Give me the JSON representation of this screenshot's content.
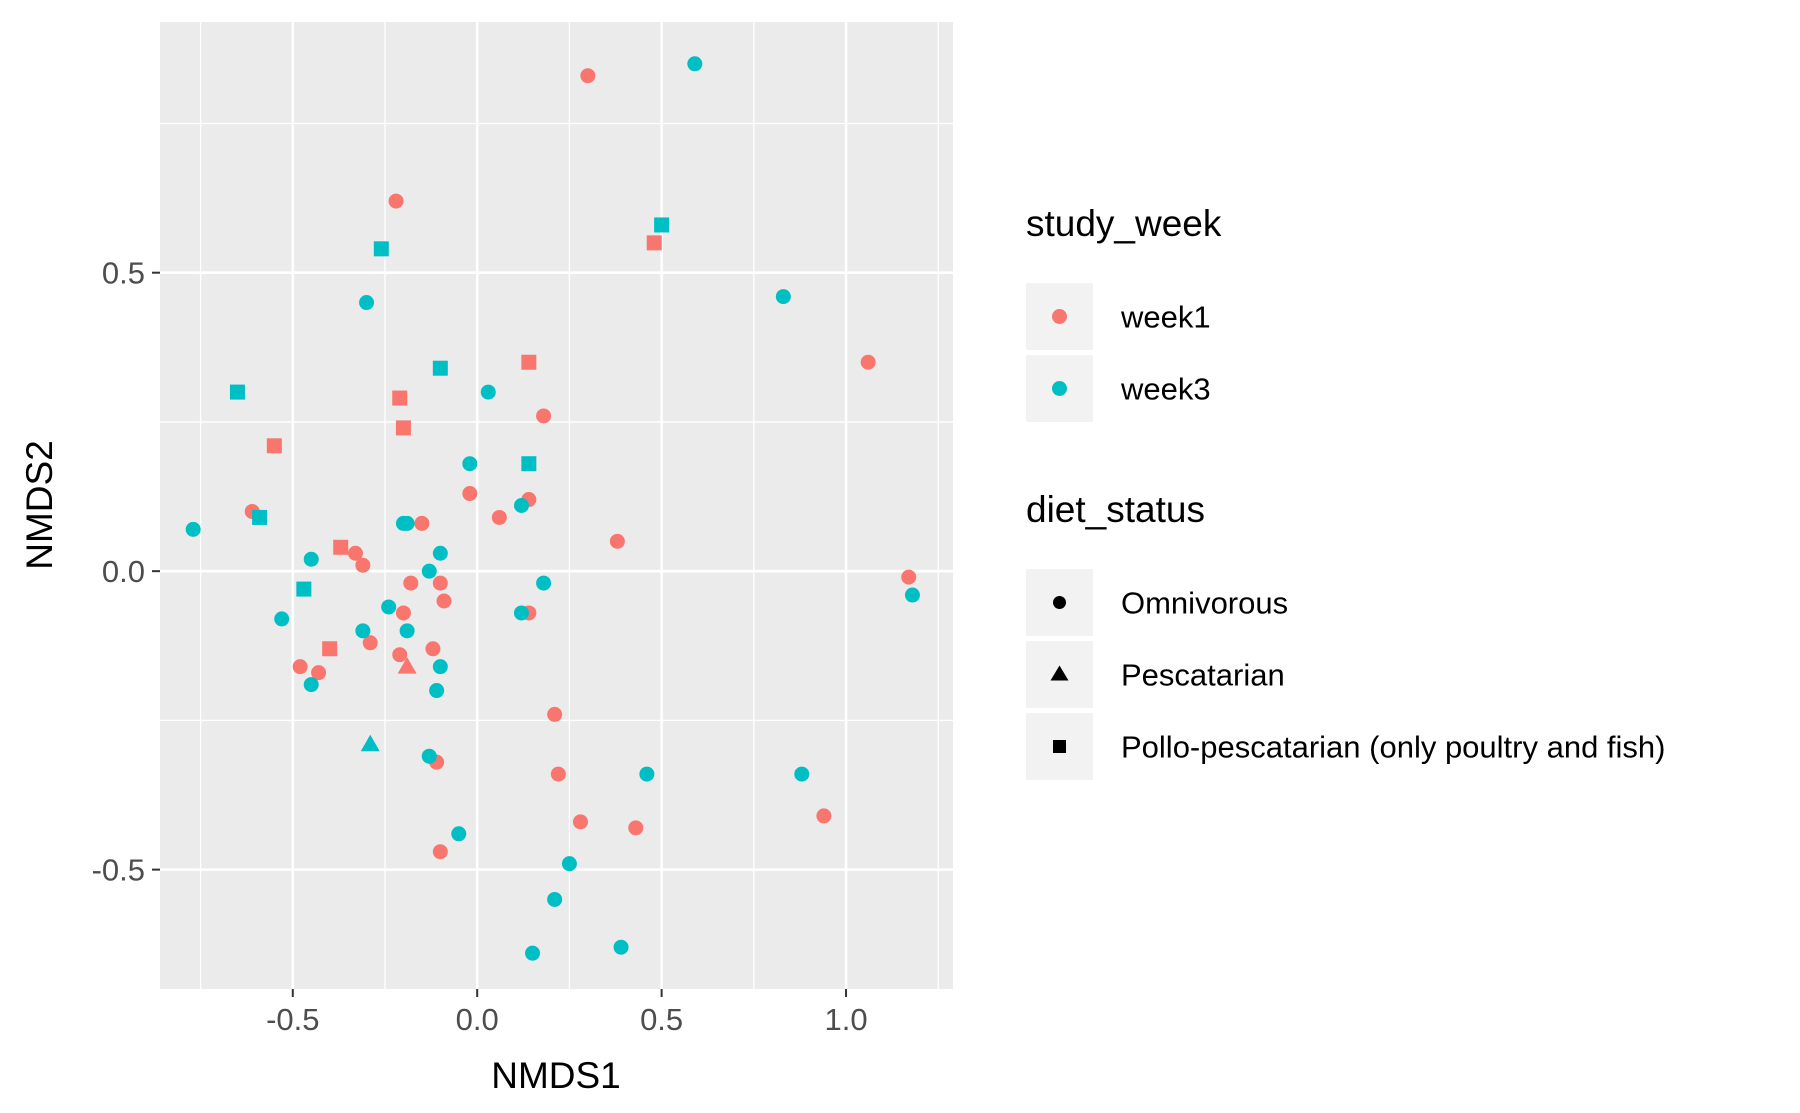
{
  "chart_data": {
    "type": "scatter",
    "xlabel": "NMDS1",
    "ylabel": "NMDS2",
    "xlim": [
      -0.86,
      1.29
    ],
    "ylim": [
      -0.7,
      0.92
    ],
    "x_ticks": [
      -0.5,
      0.0,
      0.5,
      1.0
    ],
    "y_ticks": [
      -0.5,
      0.0,
      0.5
    ],
    "x_tick_labels": [
      "-0.5",
      "0.0",
      "0.5",
      "1.0"
    ],
    "y_tick_labels": [
      "-0.5",
      "0.0",
      "0.5"
    ],
    "grid": true,
    "legend_position": "right",
    "colors": {
      "week1": "#F8766D",
      "week3": "#00BFC4",
      "panel": "#EBEBEB",
      "grid": "#FFFFFF",
      "legend_key_bg": "#F2F2F2"
    },
    "legends": [
      {
        "title": "study_week",
        "kind": "color",
        "items": [
          {
            "label": "week1",
            "key": "week1"
          },
          {
            "label": "week3",
            "key": "week3"
          }
        ]
      },
      {
        "title": "diet_status",
        "kind": "shape",
        "items": [
          {
            "label": "Omnivorous",
            "shape": "circle"
          },
          {
            "label": "Pescatarian",
            "shape": "triangle"
          },
          {
            "label": "Pollo-pescatarian (only poultry and fish)",
            "shape": "square"
          }
        ]
      }
    ],
    "series": [
      {
        "name": "week1",
        "color": "#F8766D",
        "points": [
          {
            "x": 0.3,
            "y": 0.83,
            "shape": "circle"
          },
          {
            "x": -0.22,
            "y": 0.62,
            "shape": "circle"
          },
          {
            "x": 0.48,
            "y": 0.55,
            "shape": "square"
          },
          {
            "x": 1.06,
            "y": 0.35,
            "shape": "circle"
          },
          {
            "x": 0.14,
            "y": 0.35,
            "shape": "square"
          },
          {
            "x": -0.21,
            "y": 0.29,
            "shape": "square"
          },
          {
            "x": 0.18,
            "y": 0.26,
            "shape": "circle"
          },
          {
            "x": -0.2,
            "y": 0.24,
            "shape": "square"
          },
          {
            "x": -0.55,
            "y": 0.21,
            "shape": "square"
          },
          {
            "x": -0.02,
            "y": 0.13,
            "shape": "circle"
          },
          {
            "x": 0.14,
            "y": 0.12,
            "shape": "circle"
          },
          {
            "x": -0.61,
            "y": 0.1,
            "shape": "circle"
          },
          {
            "x": 0.06,
            "y": 0.09,
            "shape": "circle"
          },
          {
            "x": -0.15,
            "y": 0.08,
            "shape": "circle"
          },
          {
            "x": 0.38,
            "y": 0.05,
            "shape": "circle"
          },
          {
            "x": -0.37,
            "y": 0.04,
            "shape": "square"
          },
          {
            "x": -0.33,
            "y": 0.03,
            "shape": "circle"
          },
          {
            "x": -0.31,
            "y": 0.01,
            "shape": "circle"
          },
          {
            "x": 1.17,
            "y": -0.01,
            "shape": "circle"
          },
          {
            "x": -0.18,
            "y": -0.02,
            "shape": "circle"
          },
          {
            "x": -0.1,
            "y": -0.02,
            "shape": "circle"
          },
          {
            "x": -0.09,
            "y": -0.05,
            "shape": "circle"
          },
          {
            "x": -0.2,
            "y": -0.07,
            "shape": "circle"
          },
          {
            "x": 0.14,
            "y": -0.07,
            "shape": "circle"
          },
          {
            "x": -0.29,
            "y": -0.12,
            "shape": "circle"
          },
          {
            "x": -0.12,
            "y": -0.13,
            "shape": "circle"
          },
          {
            "x": -0.4,
            "y": -0.13,
            "shape": "square"
          },
          {
            "x": -0.21,
            "y": -0.14,
            "shape": "circle"
          },
          {
            "x": -0.48,
            "y": -0.16,
            "shape": "circle"
          },
          {
            "x": -0.43,
            "y": -0.17,
            "shape": "circle"
          },
          {
            "x": -0.19,
            "y": -0.16,
            "shape": "triangle"
          },
          {
            "x": 0.21,
            "y": -0.24,
            "shape": "circle"
          },
          {
            "x": -0.11,
            "y": -0.32,
            "shape": "circle"
          },
          {
            "x": 0.22,
            "y": -0.34,
            "shape": "circle"
          },
          {
            "x": 0.94,
            "y": -0.41,
            "shape": "circle"
          },
          {
            "x": 0.28,
            "y": -0.42,
            "shape": "circle"
          },
          {
            "x": 0.43,
            "y": -0.43,
            "shape": "circle"
          },
          {
            "x": -0.1,
            "y": -0.47,
            "shape": "circle"
          }
        ]
      },
      {
        "name": "week3",
        "color": "#00BFC4",
        "points": [
          {
            "x": 0.59,
            "y": 0.85,
            "shape": "circle"
          },
          {
            "x": 0.5,
            "y": 0.58,
            "shape": "square"
          },
          {
            "x": -0.26,
            "y": 0.54,
            "shape": "square"
          },
          {
            "x": 0.83,
            "y": 0.46,
            "shape": "circle"
          },
          {
            "x": -0.3,
            "y": 0.45,
            "shape": "circle"
          },
          {
            "x": -0.1,
            "y": 0.34,
            "shape": "square"
          },
          {
            "x": 0.03,
            "y": 0.3,
            "shape": "circle"
          },
          {
            "x": -0.65,
            "y": 0.3,
            "shape": "square"
          },
          {
            "x": 0.14,
            "y": 0.18,
            "shape": "square"
          },
          {
            "x": -0.02,
            "y": 0.18,
            "shape": "circle"
          },
          {
            "x": 0.12,
            "y": 0.11,
            "shape": "circle"
          },
          {
            "x": -0.59,
            "y": 0.09,
            "shape": "square"
          },
          {
            "x": -0.2,
            "y": 0.08,
            "shape": "circle"
          },
          {
            "x": -0.19,
            "y": 0.08,
            "shape": "circle"
          },
          {
            "x": -0.77,
            "y": 0.07,
            "shape": "circle"
          },
          {
            "x": -0.1,
            "y": 0.03,
            "shape": "circle"
          },
          {
            "x": -0.45,
            "y": 0.02,
            "shape": "circle"
          },
          {
            "x": -0.13,
            "y": 0.0,
            "shape": "circle"
          },
          {
            "x": 0.18,
            "y": -0.02,
            "shape": "circle"
          },
          {
            "x": -0.47,
            "y": -0.03,
            "shape": "square"
          },
          {
            "x": 1.18,
            "y": -0.04,
            "shape": "circle"
          },
          {
            "x": -0.24,
            "y": -0.06,
            "shape": "circle"
          },
          {
            "x": 0.12,
            "y": -0.07,
            "shape": "circle"
          },
          {
            "x": -0.53,
            "y": -0.08,
            "shape": "circle"
          },
          {
            "x": -0.19,
            "y": -0.1,
            "shape": "circle"
          },
          {
            "x": -0.31,
            "y": -0.1,
            "shape": "circle"
          },
          {
            "x": -0.1,
            "y": -0.16,
            "shape": "circle"
          },
          {
            "x": -0.45,
            "y": -0.19,
            "shape": "circle"
          },
          {
            "x": -0.11,
            "y": -0.2,
            "shape": "circle"
          },
          {
            "x": -0.29,
            "y": -0.29,
            "shape": "triangle"
          },
          {
            "x": -0.13,
            "y": -0.31,
            "shape": "circle"
          },
          {
            "x": 0.46,
            "y": -0.34,
            "shape": "circle"
          },
          {
            "x": 0.88,
            "y": -0.34,
            "shape": "circle"
          },
          {
            "x": -0.05,
            "y": -0.44,
            "shape": "circle"
          },
          {
            "x": 0.25,
            "y": -0.49,
            "shape": "circle"
          },
          {
            "x": 0.21,
            "y": -0.55,
            "shape": "circle"
          },
          {
            "x": 0.39,
            "y": -0.63,
            "shape": "circle"
          },
          {
            "x": 0.15,
            "y": -0.64,
            "shape": "circle"
          }
        ]
      }
    ]
  }
}
